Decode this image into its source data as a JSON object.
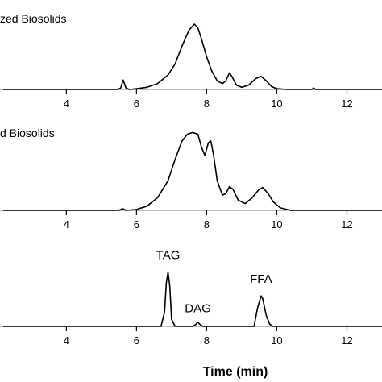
{
  "chart_data": {
    "type": "line",
    "xlabel": "Time (min)",
    "xlim": [
      2.2,
      13.0
    ],
    "xticks": [
      4,
      6,
      8,
      10,
      12
    ],
    "panels": [
      {
        "title": "zed Biosolids",
        "series": [
          {
            "x": [
              2.2,
              5.45,
              5.55,
              5.62,
              5.7,
              5.8,
              6.0,
              6.3,
              6.6,
              6.9,
              7.1,
              7.3,
              7.5,
              7.65,
              7.75,
              7.85,
              8.0,
              8.15,
              8.3,
              8.45,
              8.55,
              8.65,
              8.72,
              8.85,
              9.0,
              9.2,
              9.4,
              9.55,
              9.7,
              9.85,
              10.0,
              10.3,
              11.0,
              11.05,
              11.1,
              12.0,
              13.0
            ],
            "y": [
              0,
              0,
              0.02,
              0.13,
              0.02,
              0,
              0.01,
              0.03,
              0.08,
              0.2,
              0.35,
              0.6,
              0.82,
              0.9,
              0.85,
              0.7,
              0.45,
              0.25,
              0.12,
              0.08,
              0.12,
              0.23,
              0.18,
              0.06,
              0.03,
              0.06,
              0.15,
              0.18,
              0.12,
              0.04,
              0.01,
              0,
              0,
              0.02,
              0,
              0,
              0
            ]
          }
        ]
      },
      {
        "title": "d Biosolids",
        "series": [
          {
            "x": [
              2.2,
              5.5,
              5.6,
              5.7,
              6.0,
              6.3,
              6.6,
              6.9,
              7.1,
              7.3,
              7.45,
              7.6,
              7.75,
              7.85,
              7.95,
              8.05,
              8.12,
              8.2,
              8.3,
              8.45,
              8.55,
              8.65,
              8.75,
              8.9,
              9.1,
              9.3,
              9.5,
              9.6,
              9.75,
              9.9,
              10.1,
              10.4,
              13.0
            ],
            "y": [
              0,
              0,
              0.02,
              0,
              0.01,
              0.05,
              0.15,
              0.35,
              0.6,
              0.82,
              0.9,
              0.92,
              0.9,
              0.75,
              0.65,
              0.8,
              0.82,
              0.65,
              0.35,
              0.18,
              0.2,
              0.28,
              0.25,
              0.12,
              0.08,
              0.15,
              0.25,
              0.27,
              0.2,
              0.1,
              0.03,
              0,
              0
            ]
          }
        ]
      },
      {
        "title": "",
        "series": [
          {
            "x": [
              2.2,
              6.7,
              6.8,
              6.85,
              6.9,
              6.95,
              7.0,
              7.1,
              7.6,
              7.7,
              7.75,
              7.8,
              7.9,
              9.35,
              9.45,
              9.55,
              9.6,
              9.7,
              9.8,
              9.9,
              13.0
            ],
            "y": [
              0,
              0,
              0.2,
              0.6,
              0.75,
              0.55,
              0.1,
              0,
              0,
              0.03,
              0.06,
              0.03,
              0,
              0,
              0.25,
              0.42,
              0.38,
              0.15,
              0.03,
              0,
              0
            ]
          }
        ],
        "annotations": [
          {
            "text": "TAG",
            "x": 6.9
          },
          {
            "text": "DAG",
            "x": 7.75
          },
          {
            "text": "FFA",
            "x": 9.55
          }
        ]
      }
    ]
  }
}
